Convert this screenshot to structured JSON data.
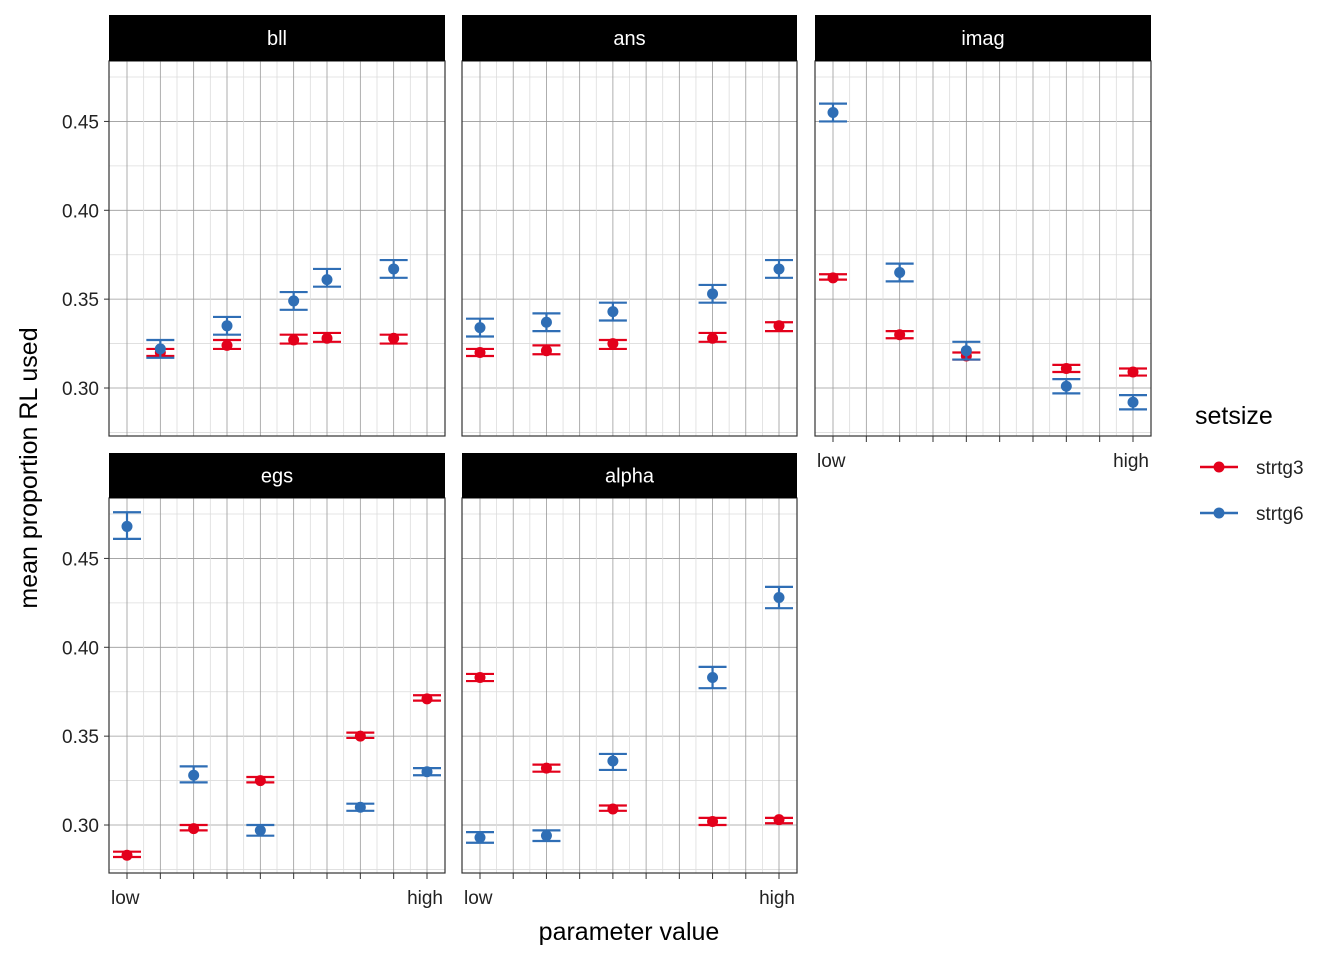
{
  "chart_data": {
    "type": "scatter",
    "ylabel": "mean proportion RL used",
    "xlabel": "parameter value",
    "x_tick_labels": {
      "low": "low",
      "high": "high"
    },
    "y_ticks": [
      0.3,
      0.35,
      0.4,
      0.45
    ],
    "y_tick_labels": [
      "0.30",
      "0.35",
      "0.40",
      "0.45"
    ],
    "ylim": [
      0.273,
      0.484
    ],
    "x_positions": 10,
    "legend": {
      "title": "setsize",
      "placement": "right",
      "entries": [
        {
          "name": "strtg3",
          "color": "#e3001b"
        },
        {
          "name": "strtg6",
          "color": "#2f6eb5"
        }
      ]
    },
    "grid": true,
    "panels": [
      {
        "title": "bll",
        "series": [
          {
            "name": "strtg3",
            "points": [
              {
                "x": 2,
                "y": 0.32,
                "lo": 0.318,
                "hi": 0.322
              },
              {
                "x": 4,
                "y": 0.324,
                "lo": 0.322,
                "hi": 0.327
              },
              {
                "x": 6,
                "y": 0.327,
                "lo": 0.325,
                "hi": 0.33
              },
              {
                "x": 7,
                "y": 0.328,
                "lo": 0.326,
                "hi": 0.331
              },
              {
                "x": 9,
                "y": 0.328,
                "lo": 0.325,
                "hi": 0.33
              }
            ]
          },
          {
            "name": "strtg6",
            "points": [
              {
                "x": 2,
                "y": 0.322,
                "lo": 0.317,
                "hi": 0.327
              },
              {
                "x": 4,
                "y": 0.335,
                "lo": 0.33,
                "hi": 0.34
              },
              {
                "x": 6,
                "y": 0.349,
                "lo": 0.344,
                "hi": 0.354
              },
              {
                "x": 7,
                "y": 0.361,
                "lo": 0.357,
                "hi": 0.367
              },
              {
                "x": 9,
                "y": 0.367,
                "lo": 0.362,
                "hi": 0.372
              }
            ]
          }
        ]
      },
      {
        "title": "ans",
        "series": [
          {
            "name": "strtg3",
            "points": [
              {
                "x": 1,
                "y": 0.32,
                "lo": 0.318,
                "hi": 0.322
              },
              {
                "x": 3,
                "y": 0.321,
                "lo": 0.319,
                "hi": 0.324
              },
              {
                "x": 5,
                "y": 0.325,
                "lo": 0.322,
                "hi": 0.327
              },
              {
                "x": 8,
                "y": 0.328,
                "lo": 0.326,
                "hi": 0.331
              },
              {
                "x": 10,
                "y": 0.335,
                "lo": 0.332,
                "hi": 0.337
              }
            ]
          },
          {
            "name": "strtg6",
            "points": [
              {
                "x": 1,
                "y": 0.334,
                "lo": 0.329,
                "hi": 0.339
              },
              {
                "x": 3,
                "y": 0.337,
                "lo": 0.332,
                "hi": 0.342
              },
              {
                "x": 5,
                "y": 0.343,
                "lo": 0.338,
                "hi": 0.348
              },
              {
                "x": 8,
                "y": 0.353,
                "lo": 0.348,
                "hi": 0.358
              },
              {
                "x": 10,
                "y": 0.367,
                "lo": 0.362,
                "hi": 0.372
              }
            ]
          }
        ]
      },
      {
        "title": "imag",
        "series": [
          {
            "name": "strtg3",
            "points": [
              {
                "x": 1,
                "y": 0.362,
                "lo": 0.361,
                "hi": 0.364
              },
              {
                "x": 3,
                "y": 0.33,
                "lo": 0.328,
                "hi": 0.332
              },
              {
                "x": 5,
                "y": 0.318,
                "lo": 0.316,
                "hi": 0.32
              },
              {
                "x": 8,
                "y": 0.311,
                "lo": 0.309,
                "hi": 0.313
              },
              {
                "x": 10,
                "y": 0.309,
                "lo": 0.307,
                "hi": 0.311
              }
            ]
          },
          {
            "name": "strtg6",
            "points": [
              {
                "x": 1,
                "y": 0.455,
                "lo": 0.45,
                "hi": 0.46
              },
              {
                "x": 3,
                "y": 0.365,
                "lo": 0.36,
                "hi": 0.37
              },
              {
                "x": 5,
                "y": 0.321,
                "lo": 0.316,
                "hi": 0.326
              },
              {
                "x": 8,
                "y": 0.301,
                "lo": 0.297,
                "hi": 0.305
              },
              {
                "x": 10,
                "y": 0.292,
                "lo": 0.288,
                "hi": 0.296
              }
            ]
          }
        ]
      },
      {
        "title": "egs",
        "series": [
          {
            "name": "strtg3",
            "points": [
              {
                "x": 1,
                "y": 0.283,
                "lo": 0.282,
                "hi": 0.285
              },
              {
                "x": 3,
                "y": 0.298,
                "lo": 0.297,
                "hi": 0.3
              },
              {
                "x": 5,
                "y": 0.325,
                "lo": 0.324,
                "hi": 0.327
              },
              {
                "x": 8,
                "y": 0.35,
                "lo": 0.349,
                "hi": 0.352
              },
              {
                "x": 10,
                "y": 0.371,
                "lo": 0.37,
                "hi": 0.373
              }
            ]
          },
          {
            "name": "strtg6",
            "points": [
              {
                "x": 1,
                "y": 0.468,
                "lo": 0.461,
                "hi": 0.476
              },
              {
                "x": 3,
                "y": 0.328,
                "lo": 0.324,
                "hi": 0.333
              },
              {
                "x": 5,
                "y": 0.297,
                "lo": 0.294,
                "hi": 0.3
              },
              {
                "x": 8,
                "y": 0.31,
                "lo": 0.308,
                "hi": 0.312
              },
              {
                "x": 10,
                "y": 0.33,
                "lo": 0.328,
                "hi": 0.332
              }
            ]
          }
        ]
      },
      {
        "title": "alpha",
        "series": [
          {
            "name": "strtg3",
            "points": [
              {
                "x": 1,
                "y": 0.383,
                "lo": 0.381,
                "hi": 0.385
              },
              {
                "x": 3,
                "y": 0.332,
                "lo": 0.33,
                "hi": 0.334
              },
              {
                "x": 5,
                "y": 0.309,
                "lo": 0.308,
                "hi": 0.311
              },
              {
                "x": 8,
                "y": 0.302,
                "lo": 0.3,
                "hi": 0.304
              },
              {
                "x": 10,
                "y": 0.303,
                "lo": 0.301,
                "hi": 0.304
              }
            ]
          },
          {
            "name": "strtg6",
            "points": [
              {
                "x": 1,
                "y": 0.293,
                "lo": 0.29,
                "hi": 0.296
              },
              {
                "x": 3,
                "y": 0.294,
                "lo": 0.291,
                "hi": 0.297
              },
              {
                "x": 5,
                "y": 0.336,
                "lo": 0.331,
                "hi": 0.34
              },
              {
                "x": 8,
                "y": 0.383,
                "lo": 0.377,
                "hi": 0.389
              },
              {
                "x": 10,
                "y": 0.428,
                "lo": 0.422,
                "hi": 0.434
              }
            ]
          }
        ]
      }
    ]
  }
}
